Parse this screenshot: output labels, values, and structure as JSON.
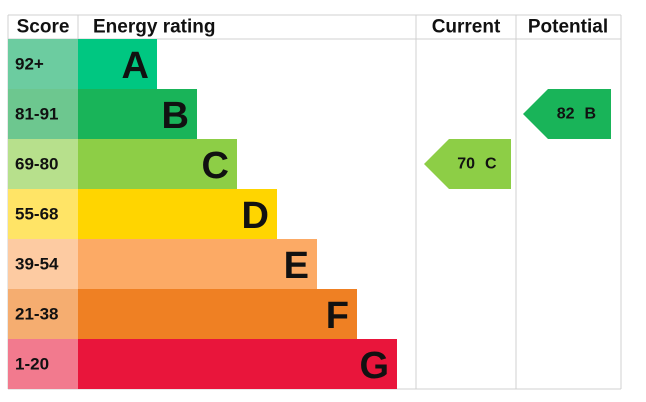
{
  "header": {
    "score": "Score",
    "rating": "Energy rating",
    "current": "Current",
    "potential": "Potential"
  },
  "bands": [
    {
      "score": "92+",
      "letter": "A",
      "color": "#00c781",
      "score_color": "#6ccca0"
    },
    {
      "score": "81-91",
      "letter": "B",
      "color": "#19b459",
      "score_color": "#6dc78f"
    },
    {
      "score": "69-80",
      "letter": "C",
      "color": "#8dce46",
      "score_color": "#b7e08c"
    },
    {
      "score": "55-68",
      "letter": "D",
      "color": "#ffd500",
      "score_color": "#ffe466"
    },
    {
      "score": "39-54",
      "letter": "E",
      "color": "#fcaa65",
      "score_color": "#fdcba2"
    },
    {
      "score": "21-38",
      "letter": "F",
      "color": "#ef8023",
      "score_color": "#f5ad70"
    },
    {
      "score": "1-20",
      "letter": "G",
      "color": "#e9153b",
      "score_color": "#f27a8e"
    }
  ],
  "current": {
    "value": 70,
    "letter": "C"
  },
  "potential": {
    "value": 82,
    "letter": "B"
  }
}
